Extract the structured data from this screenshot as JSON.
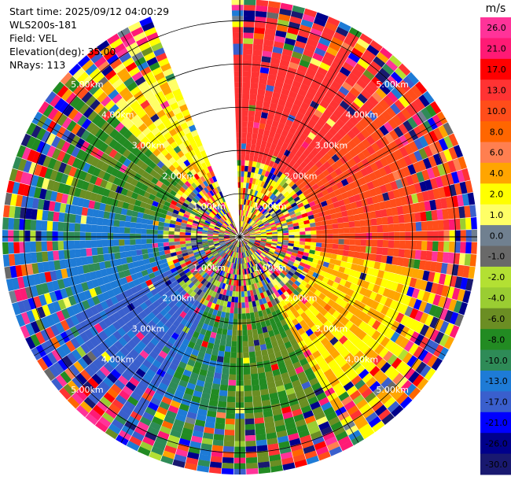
{
  "header": {
    "start_time": "Start time: 2025/09/12 04:00:29",
    "instrument": "WLS200s-181",
    "field": "Field: VEL",
    "elevation": "Elevation(deg): 35.00",
    "nrays": "NRays: 113"
  },
  "chart_data": {
    "type": "polar-ppi",
    "field": "VEL",
    "unit": "m/s",
    "elevation_deg": 35.0,
    "n_rays": 113,
    "range_max_km": 5.5,
    "range_rings_km": [
      1,
      2,
      3,
      4,
      5
    ],
    "ring_labels": [
      "1.00km",
      "2.00km",
      "3.00km",
      "4.00km",
      "5.00km"
    ],
    "gap_azimuth_deg": [
      338,
      358
    ],
    "sectors": [
      {
        "az_from": 0,
        "az_to": 45,
        "value": 15,
        "near_value": 3
      },
      {
        "az_from": 45,
        "az_to": 100,
        "value": 12,
        "near_value": 2
      },
      {
        "az_from": 100,
        "az_to": 150,
        "value": 4,
        "near_value": 1
      },
      {
        "az_from": 150,
        "az_to": 185,
        "value": -6,
        "near_value": -2
      },
      {
        "az_from": 185,
        "az_to": 205,
        "value": -9,
        "near_value": -2
      },
      {
        "az_from": 205,
        "az_to": 245,
        "value": -14,
        "near_value": -1
      },
      {
        "az_from": 245,
        "az_to": 285,
        "value": -11,
        "near_value": 0
      },
      {
        "az_from": 285,
        "az_to": 315,
        "value": -6,
        "near_value": 1
      },
      {
        "az_from": 315,
        "az_to": 338,
        "value": 3,
        "near_value": 3
      }
    ],
    "colorbar": {
      "unit": "m/s",
      "ticks": [
        "26.0",
        "21.0",
        "17.0",
        "13.0",
        "10.0",
        "8.0",
        "6.0",
        "4.0",
        "2.0",
        "1.0",
        "0.0",
        "-1.0",
        "-2.0",
        "-4.0",
        "-6.0",
        "-8.0",
        "-10.0",
        "-13.0",
        "-17.0",
        "-21.0",
        "-26.0",
        "-30.0"
      ],
      "bins": [
        {
          "min": 26,
          "max": 30,
          "color": "#ff3399"
        },
        {
          "min": 21,
          "max": 26,
          "color": "#ff1a75"
        },
        {
          "min": 17,
          "max": 21,
          "color": "#ff0000"
        },
        {
          "min": 13,
          "max": 17,
          "color": "#ff3333"
        },
        {
          "min": 10,
          "max": 13,
          "color": "#ff4d1a"
        },
        {
          "min": 8,
          "max": 10,
          "color": "#ff6600"
        },
        {
          "min": 6,
          "max": 8,
          "color": "#ff7f50"
        },
        {
          "min": 4,
          "max": 6,
          "color": "#ffa500"
        },
        {
          "min": 2,
          "max": 4,
          "color": "#ffff00"
        },
        {
          "min": 1,
          "max": 2,
          "color": "#ffff66"
        },
        {
          "min": 0,
          "max": 1,
          "color": "#708090"
        },
        {
          "min": -1,
          "max": 0,
          "color": "#696969"
        },
        {
          "min": -2,
          "max": -1,
          "color": "#b3e033"
        },
        {
          "min": -4,
          "max": -2,
          "color": "#9acd32"
        },
        {
          "min": -6,
          "max": -4,
          "color": "#6b8e23"
        },
        {
          "min": -8,
          "max": -6,
          "color": "#228b22"
        },
        {
          "min": -10,
          "max": -8,
          "color": "#2e8b57"
        },
        {
          "min": -13,
          "max": -10,
          "color": "#1e7bd6"
        },
        {
          "min": -17,
          "max": -13,
          "color": "#3a5fcd"
        },
        {
          "min": -21,
          "max": -17,
          "color": "#0000ff"
        },
        {
          "min": -26,
          "max": -21,
          "color": "#00008b"
        },
        {
          "min": -30,
          "max": -26,
          "color": "#191970"
        }
      ]
    }
  }
}
